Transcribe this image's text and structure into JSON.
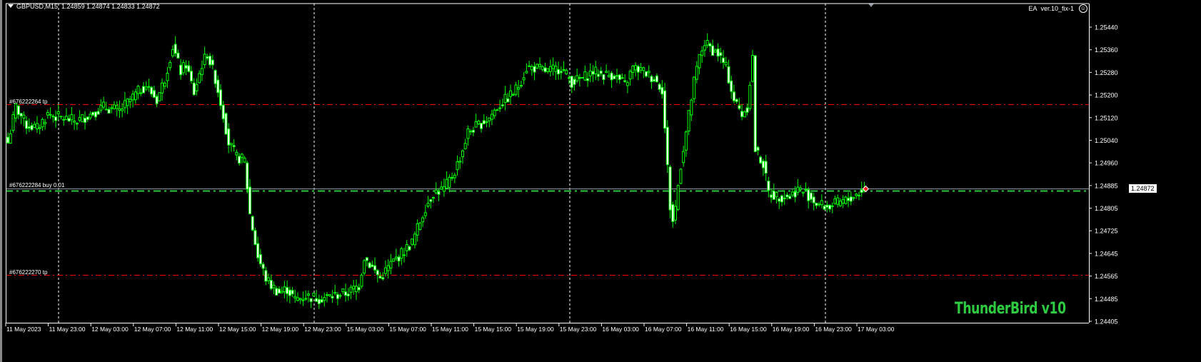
{
  "header": {
    "symbol": "GBPUSD,M15",
    "ohlc": "1.24859 1.24874 1.24833 1.24872"
  },
  "expert": {
    "label": "EA",
    "name": "ver.10_fix-1",
    "status_icon": "smiley-icon"
  },
  "logo": "ThunderBird v10",
  "colors": {
    "background": "#000000",
    "candle": "#00ff00",
    "bull_body": "#000000",
    "bear_body": "#ffffff",
    "tp_line": "#ff0000",
    "buy_line": "#2ecc40",
    "bid_line": "#8c96a0",
    "grid": "#ffffff"
  },
  "orders": [
    {
      "label": "#676222264 tp",
      "price": 1.25169,
      "type": "tp"
    },
    {
      "label": "#676222284 buy 0.01",
      "price": 1.24865,
      "type": "buy"
    },
    {
      "label": "#676222270 tp",
      "price": 1.24568,
      "type": "tp"
    }
  ],
  "bid": "1.24872",
  "price_axis": [
    "1.25440",
    "1.25360",
    "1.25280",
    "1.25200",
    "1.25120",
    "1.25040",
    "1.24960",
    "1.24885",
    "1.24805",
    "1.24725",
    "1.24645",
    "1.24565",
    "1.24485",
    "1.24405"
  ],
  "time_axis": [
    "11 May 2023",
    "11 May 23:00",
    "12 May 03:00",
    "12 May 07:00",
    "12 May 11:00",
    "12 May 15:00",
    "12 May 19:00",
    "12 May 23:00",
    "15 May 03:00",
    "15 May 07:00",
    "15 May 11:00",
    "15 May 15:00",
    "15 May 19:00",
    "15 May 23:00",
    "16 May 03:00",
    "16 May 07:00",
    "16 May 11:00",
    "16 May 15:00",
    "16 May 19:00",
    "16 May 23:00",
    "17 May 03:00"
  ],
  "chart_data": {
    "type": "candlestick",
    "timeframe": "M15",
    "ylim": [
      1.24405,
      1.2544
    ],
    "grid": "period-separators",
    "close_path": [
      [
        0,
        1.25033
      ],
      [
        3,
        1.25159
      ],
      [
        7,
        1.25096
      ],
      [
        11,
        1.25084
      ],
      [
        15,
        1.25134
      ],
      [
        20,
        1.25121
      ],
      [
        26,
        1.25109
      ],
      [
        31,
        1.25134
      ],
      [
        36,
        1.25159
      ],
      [
        42,
        1.25146
      ],
      [
        46,
        1.25184
      ],
      [
        50,
        1.25222
      ],
      [
        52,
        1.25234
      ],
      [
        56,
        1.25184
      ],
      [
        59,
        1.25259
      ],
      [
        62,
        1.25372
      ],
      [
        65,
        1.25284
      ],
      [
        67,
        1.25309
      ],
      [
        70,
        1.25209
      ],
      [
        73,
        1.25309
      ],
      [
        75,
        1.25347
      ],
      [
        78,
        1.25259
      ],
      [
        81,
        1.25134
      ],
      [
        83,
        1.25033
      ],
      [
        86,
        1.24983
      ],
      [
        89,
        1.24971
      ],
      [
        91,
        1.24782
      ],
      [
        94,
        1.24632
      ],
      [
        97,
        1.24556
      ],
      [
        99,
        1.24531
      ],
      [
        102,
        1.24506
      ],
      [
        105,
        1.24519
      ],
      [
        108,
        1.24481
      ],
      [
        112,
        1.24494
      ],
      [
        117,
        1.24486
      ],
      [
        122,
        1.24494
      ],
      [
        128,
        1.24506
      ],
      [
        132,
        1.24531
      ],
      [
        134,
        1.24632
      ],
      [
        137,
        1.24594
      ],
      [
        140,
        1.24556
      ],
      [
        144,
        1.24607
      ],
      [
        148,
        1.24644
      ],
      [
        152,
        1.24682
      ],
      [
        155,
        1.24757
      ],
      [
        157,
        1.24807
      ],
      [
        160,
        1.24858
      ],
      [
        164,
        1.2487
      ],
      [
        168,
        1.24933
      ],
      [
        171,
        1.25008
      ],
      [
        173,
        1.25071
      ],
      [
        177,
        1.25096
      ],
      [
        181,
        1.25121
      ],
      [
        184,
        1.25159
      ],
      [
        187,
        1.25184
      ],
      [
        190,
        1.25209
      ],
      [
        192,
        1.25234
      ],
      [
        195,
        1.25297
      ],
      [
        198,
        1.25297
      ],
      [
        203,
        1.25284
      ],
      [
        208,
        1.25297
      ],
      [
        212,
        1.25247
      ],
      [
        216,
        1.25259
      ],
      [
        220,
        1.25284
      ],
      [
        224,
        1.25272
      ],
      [
        228,
        1.25272
      ],
      [
        232,
        1.25234
      ],
      [
        235,
        1.25297
      ],
      [
        239,
        1.25284
      ],
      [
        243,
        1.25259
      ],
      [
        246,
        1.25222
      ],
      [
        249,
        1.24807
      ],
      [
        250,
        1.24757
      ],
      [
        251,
        1.24807
      ],
      [
        253,
        1.24958
      ],
      [
        255,
        1.25071
      ],
      [
        258,
        1.25247
      ],
      [
        260,
        1.25335
      ],
      [
        262,
        1.25385
      ],
      [
        265,
        1.2536
      ],
      [
        267,
        1.25347
      ],
      [
        270,
        1.25297
      ],
      [
        273,
        1.25184
      ],
      [
        276,
        1.25134
      ],
      [
        278,
        1.25159
      ],
      [
        280,
        1.25335
      ],
      [
        281,
        1.25008
      ],
      [
        284,
        1.24958
      ],
      [
        286,
        1.24858
      ],
      [
        289,
        1.24845
      ],
      [
        292,
        1.24845
      ],
      [
        294,
        1.24845
      ],
      [
        297,
        1.2487
      ],
      [
        300,
        1.24858
      ],
      [
        304,
        1.2482
      ],
      [
        308,
        1.24807
      ],
      [
        312,
        1.2482
      ],
      [
        316,
        1.24833
      ],
      [
        320,
        1.24858
      ],
      [
        322,
        1.24872
      ]
    ]
  }
}
